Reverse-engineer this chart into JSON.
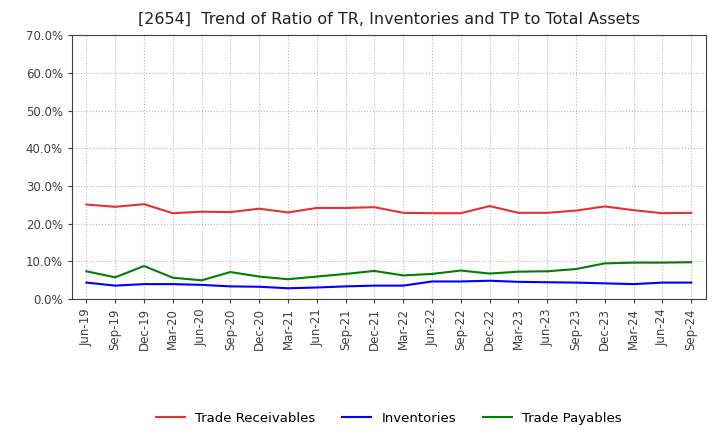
{
  "title": "[2654]  Trend of Ratio of TR, Inventories and TP to Total Assets",
  "x_labels": [
    "Jun-19",
    "Sep-19",
    "Dec-19",
    "Mar-20",
    "Jun-20",
    "Sep-20",
    "Dec-20",
    "Mar-21",
    "Jun-21",
    "Sep-21",
    "Dec-21",
    "Mar-22",
    "Jun-22",
    "Sep-22",
    "Dec-22",
    "Mar-23",
    "Jun-23",
    "Sep-23",
    "Dec-23",
    "Mar-24",
    "Jun-24",
    "Sep-24"
  ],
  "trade_receivables": [
    0.251,
    0.245,
    0.252,
    0.228,
    0.232,
    0.231,
    0.24,
    0.23,
    0.242,
    0.242,
    0.244,
    0.229,
    0.228,
    0.228,
    0.247,
    0.229,
    0.229,
    0.235,
    0.246,
    0.236,
    0.228,
    0.229
  ],
  "inventories": [
    0.044,
    0.036,
    0.04,
    0.04,
    0.038,
    0.034,
    0.033,
    0.029,
    0.031,
    0.034,
    0.036,
    0.036,
    0.047,
    0.047,
    0.049,
    0.046,
    0.045,
    0.044,
    0.042,
    0.04,
    0.044,
    0.044
  ],
  "trade_payables": [
    0.074,
    0.058,
    0.088,
    0.057,
    0.05,
    0.072,
    0.06,
    0.053,
    0.06,
    0.067,
    0.075,
    0.063,
    0.067,
    0.076,
    0.068,
    0.073,
    0.074,
    0.08,
    0.095,
    0.097,
    0.097,
    0.098
  ],
  "tr_color": "#e83030",
  "inv_color": "#0000ff",
  "tp_color": "#008000",
  "ylim": [
    0.0,
    0.7
  ],
  "yticks": [
    0.0,
    0.1,
    0.2,
    0.3,
    0.4,
    0.5,
    0.6,
    0.7
  ],
  "background_color": "#ffffff",
  "grid_color": "#bbbbbb",
  "title_fontsize": 11.5,
  "legend_fontsize": 9.5,
  "tick_fontsize": 8.5,
  "axis_label_color": "#404040",
  "spine_color": "#404040"
}
